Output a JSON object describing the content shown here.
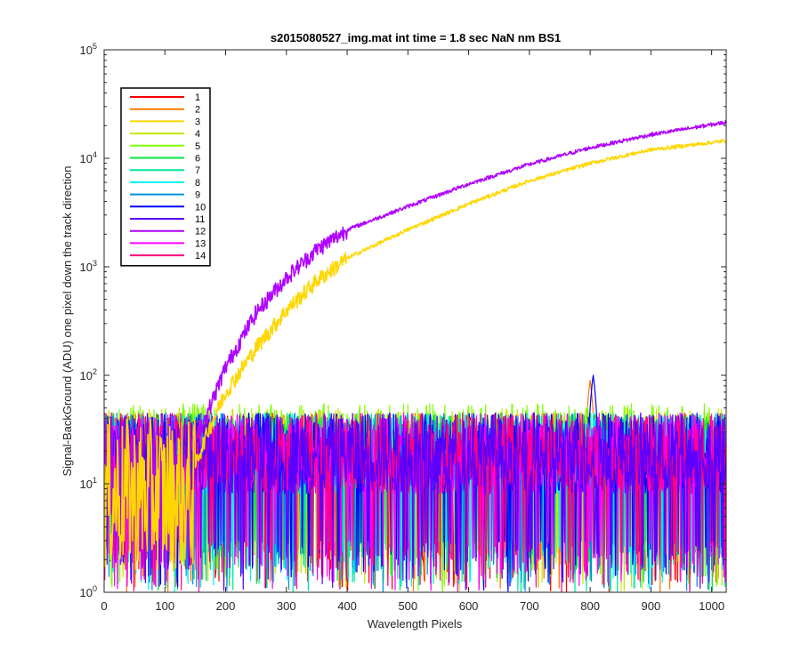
{
  "chart_data": {
    "type": "line",
    "title": "s2015080527_img.mat int time = 1.8 sec  NaN nm BS1",
    "xlabel": "Wavelength Pixels",
    "ylabel": "Signal-BackGround (ADU) one pixel down the track direction",
    "xlim": [
      0,
      1024
    ],
    "ylim": [
      1,
      100000
    ],
    "yscale": "log",
    "x_ticks": [
      0,
      100,
      200,
      300,
      400,
      500,
      600,
      700,
      800,
      900,
      1000
    ],
    "y_ticks": [
      {
        "value": 1,
        "base": "10",
        "exp": "0"
      },
      {
        "value": 10,
        "base": "10",
        "exp": "1"
      },
      {
        "value": 100,
        "base": "10",
        "exp": "2"
      },
      {
        "value": 1000,
        "base": "10",
        "exp": "3"
      },
      {
        "value": 10000,
        "base": "10",
        "exp": "4"
      },
      {
        "value": 100000,
        "base": "10",
        "exp": "5"
      }
    ],
    "grid": false,
    "legend_position": "top-left",
    "series": [
      {
        "name": "1",
        "color": "#ff0000",
        "profile": "noise",
        "range": [
          1,
          45
        ]
      },
      {
        "name": "2",
        "color": "#ff7700",
        "profile": "noise",
        "range": [
          1,
          45
        ],
        "peak": {
          "x": 800,
          "y": 90
        }
      },
      {
        "name": "3",
        "color": "#ffd700",
        "profile": "signal",
        "points": [
          [
            150,
            15
          ],
          [
            170,
            30
          ],
          [
            200,
            70
          ],
          [
            250,
            180
          ],
          [
            300,
            400
          ],
          [
            350,
            750
          ],
          [
            400,
            1200
          ],
          [
            500,
            2200
          ],
          [
            600,
            3800
          ],
          [
            700,
            6200
          ],
          [
            800,
            9000
          ],
          [
            900,
            12000
          ],
          [
            1024,
            14500
          ]
        ]
      },
      {
        "name": "4",
        "color": "#c8e600",
        "profile": "noise",
        "range": [
          1,
          50
        ]
      },
      {
        "name": "5",
        "color": "#80ff00",
        "profile": "noise",
        "range": [
          1,
          55
        ]
      },
      {
        "name": "6",
        "color": "#00e640",
        "profile": "noise",
        "range": [
          1,
          45
        ]
      },
      {
        "name": "7",
        "color": "#00e6a0",
        "profile": "noise",
        "range": [
          1,
          45
        ]
      },
      {
        "name": "8",
        "color": "#00f0f0",
        "profile": "noise",
        "range": [
          1,
          45
        ]
      },
      {
        "name": "9",
        "color": "#0090e0",
        "profile": "noise",
        "range": [
          1,
          45
        ]
      },
      {
        "name": "10",
        "color": "#0000ff",
        "profile": "noise",
        "range": [
          1,
          45
        ],
        "peak": {
          "x": 805,
          "y": 100
        }
      },
      {
        "name": "11",
        "color": "#5a00ff",
        "profile": "noise",
        "range": [
          1,
          45
        ]
      },
      {
        "name": "12",
        "color": "#b000ff",
        "profile": "signal",
        "points": [
          [
            140,
            20
          ],
          [
            170,
            45
          ],
          [
            200,
            120
          ],
          [
            250,
            380
          ],
          [
            300,
            800
          ],
          [
            350,
            1450
          ],
          [
            400,
            2200
          ],
          [
            500,
            3600
          ],
          [
            600,
            5800
          ],
          [
            700,
            8800
          ],
          [
            800,
            12500
          ],
          [
            900,
            16500
          ],
          [
            1024,
            21500
          ]
        ]
      },
      {
        "name": "13",
        "color": "#ff00ff",
        "profile": "noise",
        "range": [
          1,
          45
        ]
      },
      {
        "name": "14",
        "color": "#ff0080",
        "profile": "noise",
        "range": [
          1,
          45
        ]
      }
    ]
  }
}
